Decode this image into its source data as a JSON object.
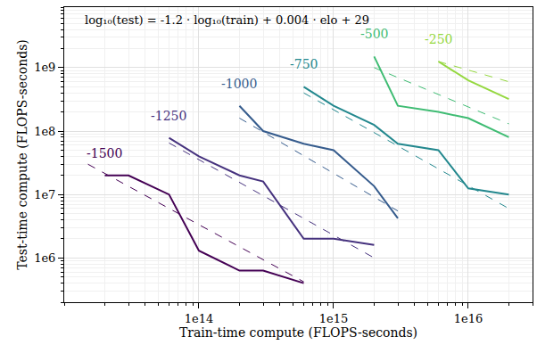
{
  "chart_data": {
    "type": "line",
    "annotations": [
      "log₁₀(test) = -1.2 · log₁₀(train) + 0.004 · elo + 29"
    ],
    "x_label": "Train-time compute (FLOPS-seconds)",
    "y_label": "Test-time compute (FLOPS-seconds)",
    "log": true,
    "grid": true,
    "xlim": [
      10000000000000.0,
      3e+16
    ],
    "ylim": [
      200000.0,
      9000000000.0
    ],
    "xticks": [
      {
        "value": 100000000000000.0,
        "label": "1e14"
      },
      {
        "value": 1000000000000000.0,
        "label": "1e15"
      },
      {
        "value": 1e+16,
        "label": "1e16"
      }
    ],
    "yticks": [
      {
        "value": 1000000.0,
        "label": "1e6"
      },
      {
        "value": 10000000.0,
        "label": "1e7"
      },
      {
        "value": 100000000.0,
        "label": "1e8"
      },
      {
        "value": 1000000000.0,
        "label": "1e9"
      }
    ],
    "series": [
      {
        "name": "-1500",
        "color": "#440154",
        "line_style": "solid",
        "x": [
          20000000000000.0,
          30000000000000.0,
          60000000000000.0,
          100000000000000.0,
          200000000000000.0,
          300000000000000.0,
          600000000000000.0
        ],
        "values": [
          20000000.0,
          20000000.0,
          10000000.0,
          1300000.0,
          630000.0,
          630000.0,
          400000.0
        ]
      },
      {
        "color": "#440154",
        "line_style": "dashed",
        "x": [
          15000000000000.0,
          600000000000000.0
        ],
        "values": [
          30000000.0,
          420000.0
        ]
      },
      {
        "name": "-1250",
        "color": "#46327e",
        "line_style": "solid",
        "x": [
          60000000000000.0,
          100000000000000.0,
          200000000000000.0,
          300000000000000.0,
          600000000000000.0,
          1000000000000000.0,
          2000000000000000.0
        ],
        "values": [
          78000000.0,
          40000000.0,
          20000000.0,
          16000000.0,
          2000000.0,
          2000000.0,
          1600000.0
        ]
      },
      {
        "color": "#46327e",
        "line_style": "dashed",
        "x": [
          60000000000000.0,
          2000000000000000.0
        ],
        "values": [
          65000000.0,
          1000000.0
        ]
      },
      {
        "name": "-1000",
        "color": "#365c8d",
        "line_style": "solid",
        "x": [
          200000000000000.0,
          300000000000000.0,
          600000000000000.0,
          1000000000000000.0,
          2000000000000000.0,
          3000000000000000.0
        ],
        "values": [
          250000000.0,
          100000000.0,
          63000000.0,
          50000000.0,
          13500000.0,
          4200000.0
        ]
      },
      {
        "color": "#365c8d",
        "line_style": "dashed",
        "x": [
          200000000000000.0,
          3000000000000000.0
        ],
        "values": [
          160000000.0,
          5500000.0
        ]
      },
      {
        "name": "-750",
        "color": "#23888e",
        "line_style": "solid",
        "x": [
          600000000000000.0,
          1000000000000000.0,
          2000000000000000.0,
          3000000000000000.0,
          6000000000000000.0,
          1e+16,
          2e+16
        ],
        "values": [
          500000000.0,
          250000000.0,
          125000000.0,
          63000000.0,
          50000000.0,
          12500000.0,
          10000000.0
        ]
      },
      {
        "color": "#23888e",
        "line_style": "dashed",
        "x": [
          600000000000000.0,
          2e+16
        ],
        "values": [
          400000000.0,
          6000000.0
        ]
      },
      {
        "name": "-500",
        "color": "#3fbc73",
        "line_style": "solid",
        "x": [
          2000000000000000.0,
          3000000000000000.0,
          6000000000000000.0,
          1e+16,
          2e+16
        ],
        "values": [
          1500000000.0,
          250000000.0,
          200000000.0,
          160000000.0,
          80000000.0
        ]
      },
      {
        "color": "#3fbc73",
        "line_style": "dashed",
        "x": [
          2000000000000000.0,
          2e+16
        ],
        "values": [
          1000000000.0,
          130000000.0
        ]
      },
      {
        "name": "-250",
        "color": "#95d840",
        "line_style": "solid",
        "x": [
          6000000000000000.0,
          1e+16,
          2e+16
        ],
        "values": [
          1250000000.0,
          630000000.0,
          320000000.0
        ]
      },
      {
        "color": "#95d840",
        "line_style": "dashed",
        "x": [
          6000000000000000.0,
          2e+16
        ],
        "values": [
          1250000000.0,
          600000000.0
        ]
      }
    ]
  }
}
